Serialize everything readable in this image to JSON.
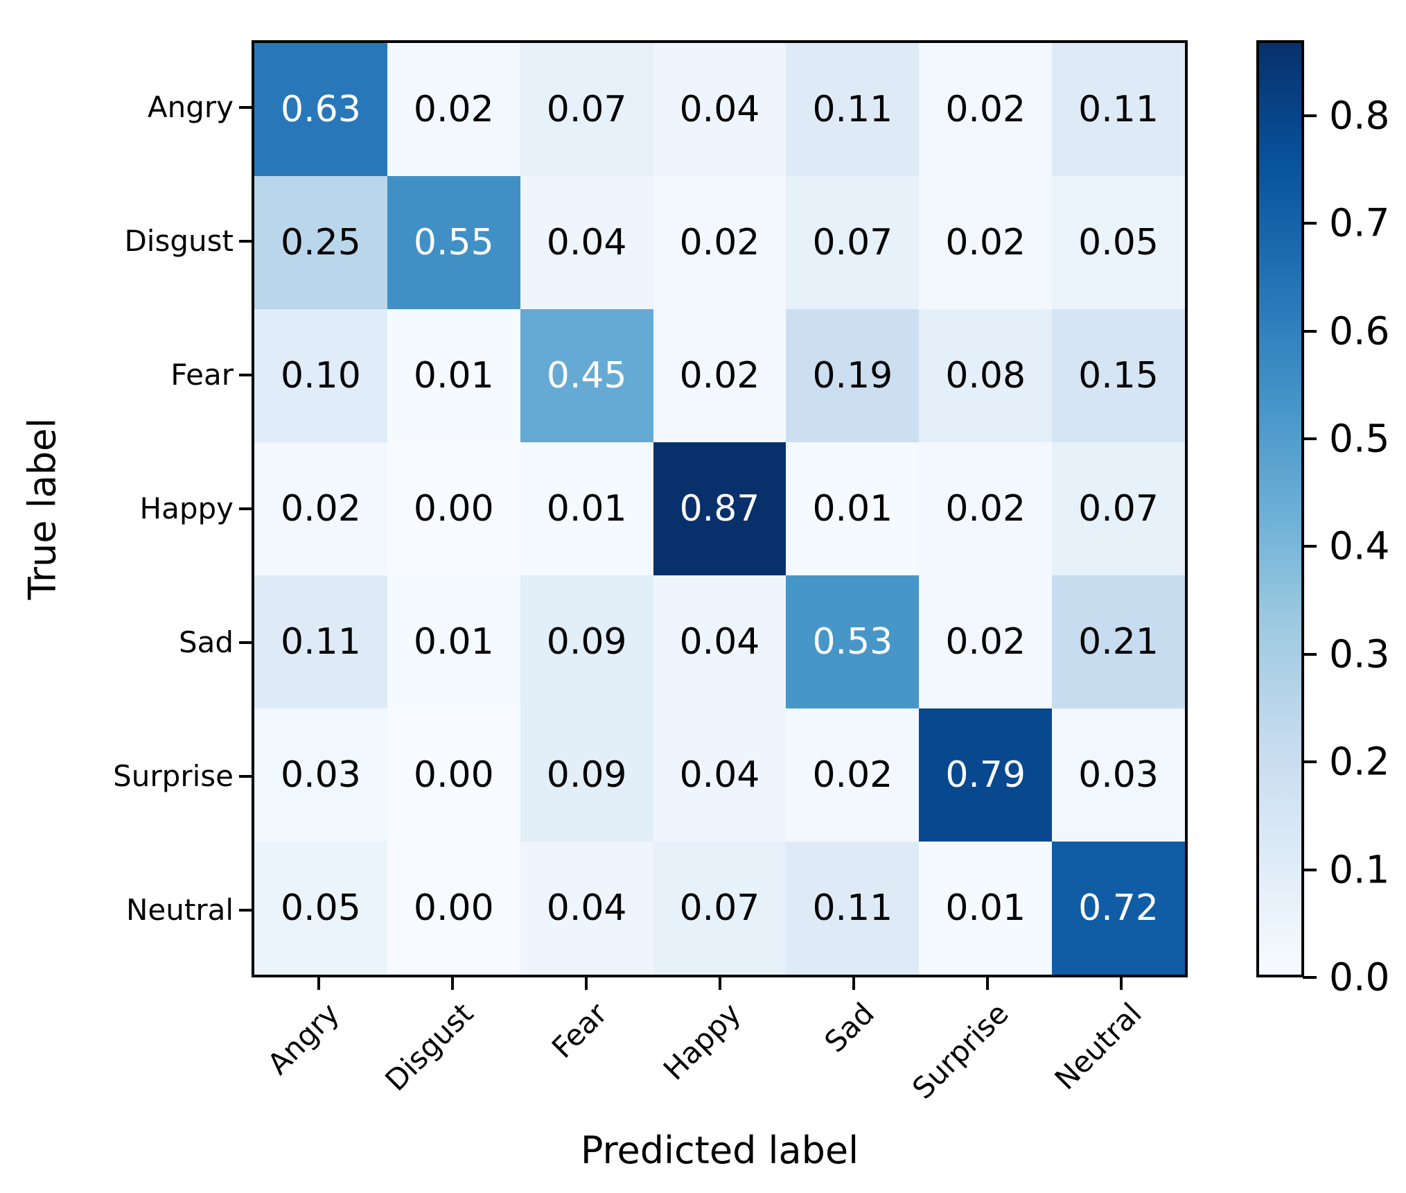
{
  "chart_data": {
    "type": "heatmap",
    "title": "",
    "xlabel": "Predicted label",
    "ylabel": "True label",
    "row_labels": [
      "Angry",
      "Disgust",
      "Fear",
      "Happy",
      "Sad",
      "Surprise",
      "Neutral"
    ],
    "col_labels": [
      "Angry",
      "Disgust",
      "Fear",
      "Happy",
      "Sad",
      "Surprise",
      "Neutral"
    ],
    "matrix": [
      [
        0.63,
        0.02,
        0.07,
        0.04,
        0.11,
        0.02,
        0.11
      ],
      [
        0.25,
        0.55,
        0.04,
        0.02,
        0.07,
        0.02,
        0.05
      ],
      [
        0.1,
        0.01,
        0.45,
        0.02,
        0.19,
        0.08,
        0.15
      ],
      [
        0.02,
        0.0,
        0.01,
        0.87,
        0.01,
        0.02,
        0.07
      ],
      [
        0.11,
        0.01,
        0.09,
        0.04,
        0.53,
        0.02,
        0.21
      ],
      [
        0.03,
        0.0,
        0.09,
        0.04,
        0.02,
        0.79,
        0.03
      ],
      [
        0.05,
        0.0,
        0.04,
        0.07,
        0.11,
        0.01,
        0.72
      ]
    ],
    "vmin": 0.0,
    "vmax": 0.87,
    "value_decimals": 2,
    "cell_text_threshold": 0.435,
    "cell_text_color_low": "#000000",
    "cell_text_color_high": "#ffffff",
    "colormap_name": "Blues",
    "colormap_anchors": [
      "#f7fbff",
      "#deebf7",
      "#c6dbef",
      "#9ecae1",
      "#6baed6",
      "#4292c6",
      "#2171b5",
      "#08519c",
      "#08306b"
    ],
    "colorbar_ticks": [
      "0.0",
      "0.1",
      "0.2",
      "0.3",
      "0.4",
      "0.5",
      "0.6",
      "0.7",
      "0.8"
    ],
    "grid": false,
    "legend_position": "colorbar-right",
    "axis_color": "#000000",
    "background_color": "#ffffff"
  }
}
